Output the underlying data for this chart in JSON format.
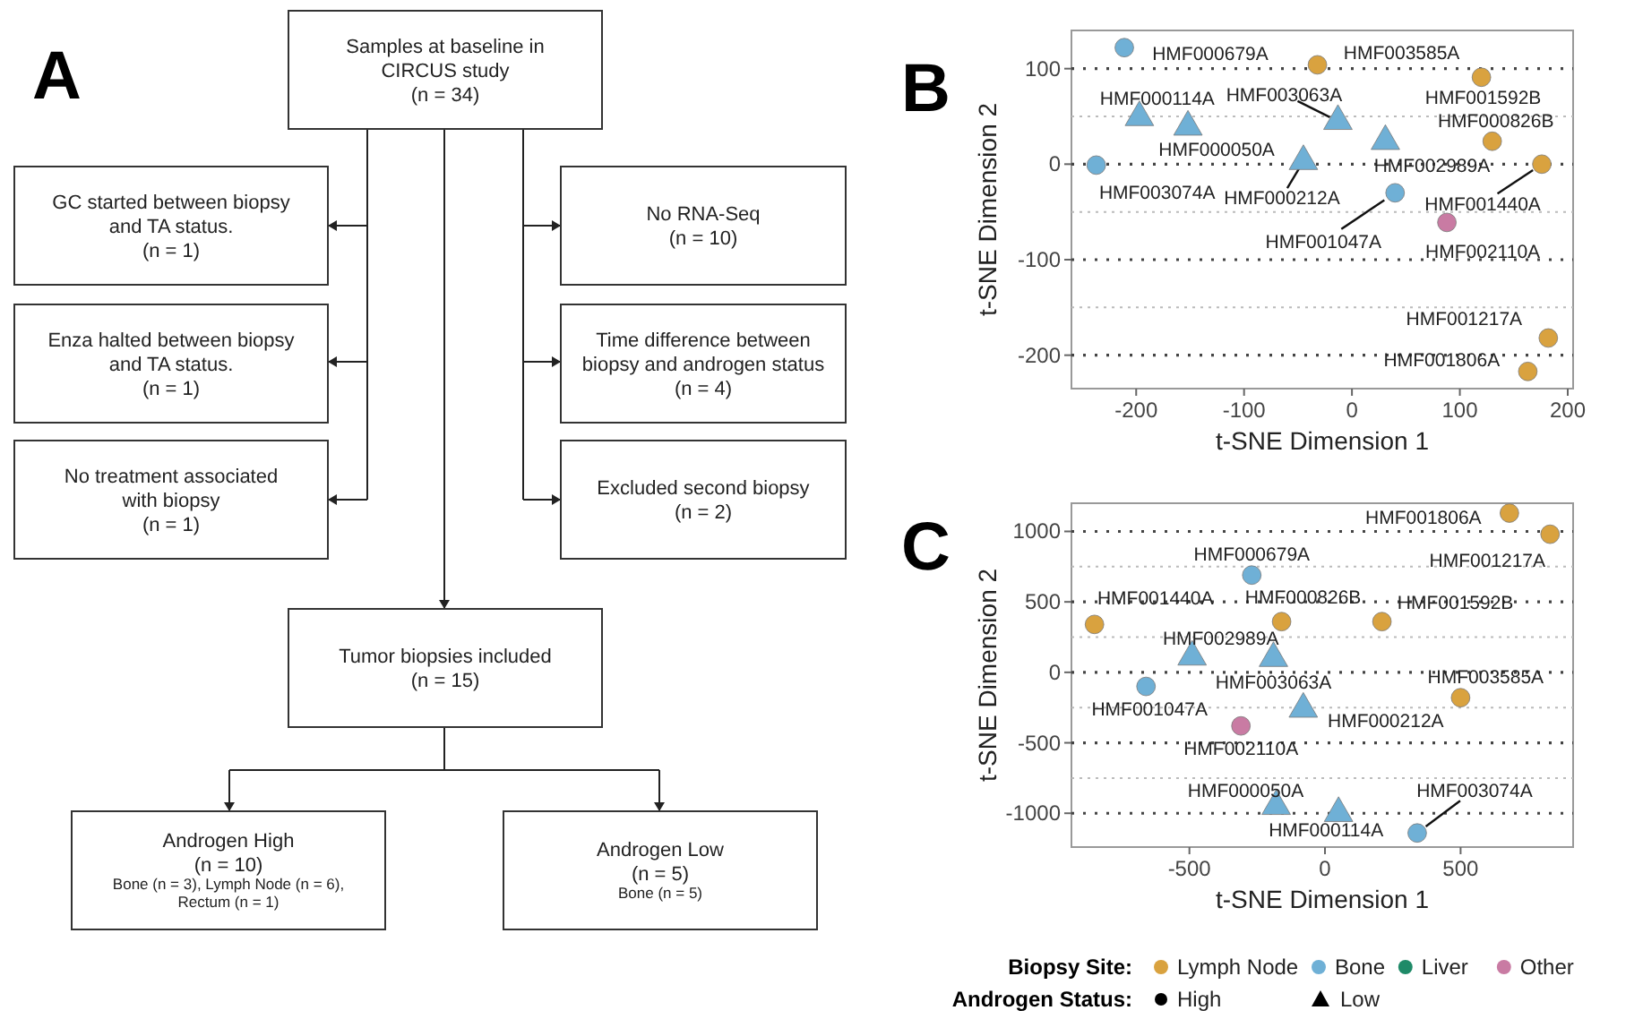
{
  "chart_data": [
    {
      "type": "other",
      "title": "A",
      "annotations": [
        "Samples at baseline in\nCIRCUS study\n(n = 34)",
        "GC started between biopsy\nand TA status.\n(n = 1)",
        "Enza halted between biopsy\nand TA status.\n(n = 1)",
        "No treatment associated\nwith biopsy\n(n = 1)",
        "No RNA-Seq\n(n = 10)",
        "Time difference between\nbiopsy and androgen status\n(n = 4)",
        "Excluded second biopsy\n(n = 2)",
        "Tumor biopsies included\n(n = 15)",
        "Androgen High\n(n = 10)\nBone (n = 3), Lymph Node (n = 6),\nRectum (n = 1)",
        "Androgen Low\n(n = 5)\nBone (n = 5)"
      ]
    },
    {
      "type": "scatter",
      "title": "B",
      "xlabel": "t-SNE Dimension 1",
      "ylabel": "t-SNE Dimension 2",
      "xlim": [
        -260,
        205
      ],
      "ylim": [
        -235,
        140
      ],
      "xticks": [
        -200,
        -100,
        0,
        100,
        200
      ],
      "yticks": [
        {
          "value": -150,
          "label": null
        },
        -200,
        -100,
        {
          "value": -50,
          "label": null
        },
        0,
        {
          "value": 50,
          "label": null
        },
        100
      ],
      "grid": "y",
      "series": [
        {
          "color": "#d9a23f",
          "marker": "circle",
          "x": [
            -32,
            120,
            130,
            176,
            182,
            163
          ],
          "values": [
            104,
            91,
            24,
            0,
            -182,
            -217
          ],
          "value_labels": [
            "HMF003585A",
            "HMF001592B",
            "HMF000826B",
            "HMF001440A",
            "HMF001217A",
            "HMF001806A"
          ]
        },
        {
          "color": "#6fb0d6",
          "marker": "circle",
          "x": [
            -211,
            -237,
            40
          ],
          "values": [
            122,
            -1,
            -30
          ],
          "value_labels": [
            "HMF000679A",
            "HMF003074A",
            "HMF001047A"
          ]
        },
        {
          "color": "#c97ba3",
          "marker": "circle",
          "x": [
            88
          ],
          "values": [
            -61
          ],
          "value_labels": [
            "HMF002110A"
          ]
        },
        {
          "color": "#6fb0d6",
          "marker": "triangle",
          "x": [
            -197,
            -152,
            -13,
            31,
            -45
          ],
          "values": [
            49,
            39,
            45,
            24,
            3
          ],
          "value_labels": [
            "HMF000114A",
            "HMF000050A",
            "HMF003063A",
            "HMF002989A",
            "HMF000212A"
          ]
        }
      ]
    },
    {
      "type": "scatter",
      "title": "C",
      "xlabel": "t-SNE Dimension 1",
      "ylabel": "t-SNE Dimension 2",
      "xlim": [
        -935,
        915
      ],
      "ylim": [
        -1240,
        1200
      ],
      "xticks": [
        -500,
        0,
        500
      ],
      "yticks": [
        -1000,
        {
          "value": -750,
          "label": null
        },
        -500,
        {
          "value": -250,
          "label": null
        },
        0,
        {
          "value": 250,
          "label": null
        },
        500,
        {
          "value": 750,
          "label": null
        },
        1000
      ],
      "grid": "y",
      "legend": "bottom",
      "legend_title": "Biopsy Site:",
      "annotations": [
        "Androgen Status:",
        "High",
        "Low"
      ],
      "series": [
        {
          "name": "Lymph Node",
          "color": "#d9a23f",
          "marker": "circle",
          "x": [
            500,
            210,
            -160,
            -850,
            830,
            680
          ],
          "values": [
            -180,
            360,
            360,
            340,
            980,
            1130
          ],
          "value_labels": [
            "HMF003585A",
            "HMF001592B",
            "HMF000826B",
            "HMF001440A",
            "HMF001217A",
            "HMF001806A"
          ]
        },
        {
          "name": "Bone",
          "color": "#6fb0d6",
          "marker": "circle",
          "x": [
            -270,
            340,
            -660
          ],
          "values": [
            690,
            -1140,
            -100
          ],
          "value_labels": [
            "HMF000679A",
            "HMF003074A",
            "HMF001047A"
          ]
        },
        {
          "name": "Liver",
          "color": "#1f8a68",
          "marker": "circle"
        },
        {
          "name": "Other",
          "color": "#c97ba3",
          "marker": "circle",
          "x": [
            -310
          ],
          "values": [
            -380
          ],
          "value_labels": [
            "HMF002110A"
          ]
        },
        {
          "color": "#6fb0d6",
          "marker": "triangle",
          "x": [
            50,
            -180,
            -190,
            -490,
            -80
          ],
          "values": [
            -1000,
            -950,
            100,
            110,
            -260
          ],
          "value_labels": [
            "HMF000114A",
            "HMF000050A",
            "HMF003063A",
            "HMF002989A",
            "HMF000212A"
          ]
        }
      ]
    }
  ]
}
